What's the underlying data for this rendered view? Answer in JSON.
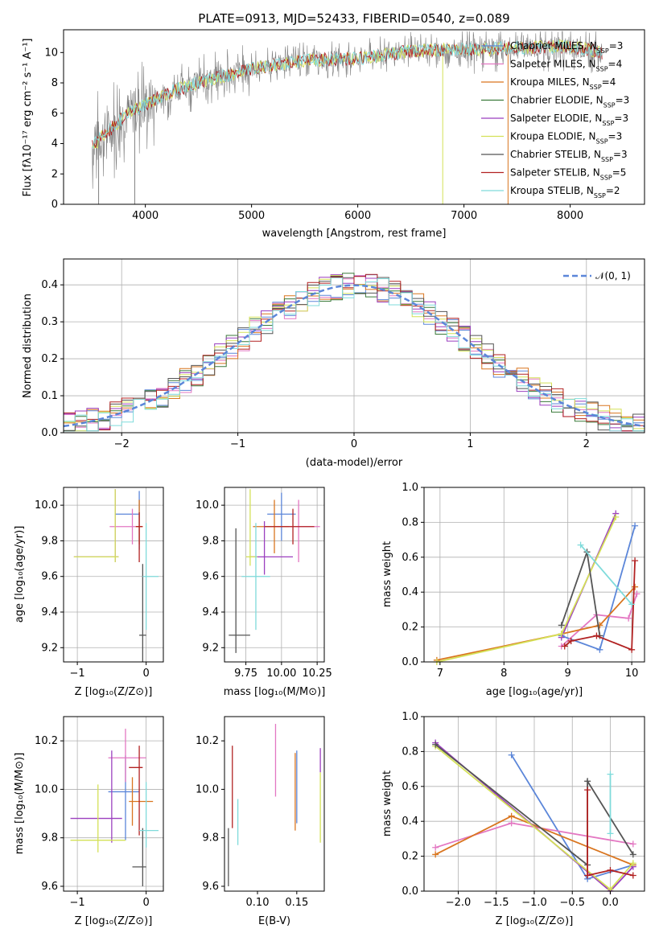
{
  "title": "PLATE=0913, MJD=52433, FIBERID=0540, z=0.089",
  "colors": {
    "Chabrier MILES": "#5b86d9",
    "Salpeter MILES": "#e377c2",
    "Kroupa MILES": "#d9751f",
    "Chabrier ELODIE": "#3a7a3a",
    "Salpeter ELODIE": "#9b3fbf",
    "Kroupa ELODIE": "#d4e157",
    "Chabrier STELIB": "#555555",
    "Salpeter STELIB": "#b22222",
    "Kroupa STELIB": "#7fdbdb"
  },
  "panels": {
    "spectrum": {
      "xlabel": "wavelength [Angstrom, rest frame]",
      "ylabel": "Flux [fλ10⁻¹⁷ erg cm⁻² s⁻¹ A⁻¹]",
      "xticks": [
        "4000",
        "5000",
        "6000",
        "7000",
        "8000"
      ],
      "yticks": [
        "0",
        "2",
        "4",
        "6",
        "8",
        "10"
      ],
      "legend": [
        {
          "name": "Chabrier MILES",
          "nssp": "3"
        },
        {
          "name": "Salpeter MILES",
          "nssp": "4"
        },
        {
          "name": "Kroupa MILES",
          "nssp": "4"
        },
        {
          "name": "Chabrier ELODIE",
          "nssp": "3"
        },
        {
          "name": "Salpeter ELODIE",
          "nssp": "3"
        },
        {
          "name": "Kroupa ELODIE",
          "nssp": "3"
        },
        {
          "name": "Chabrier STELIB",
          "nssp": "3"
        },
        {
          "name": "Salpeter STELIB",
          "nssp": "5"
        },
        {
          "name": "Kroupa STELIB",
          "nssp": "2"
        }
      ]
    },
    "residuals": {
      "xlabel": "(data-model)/error",
      "ylabel": "Normed distribution",
      "xticks": [
        "−2",
        "−1",
        "0",
        "1",
        "2"
      ],
      "yticks": [
        "0.0",
        "0.1",
        "0.2",
        "0.3",
        "0.4"
      ],
      "legend": "𝒩(0, 1)"
    },
    "age_vs_Z": {
      "xlabel": "Z [log₁₀(Z/Z⊙)]",
      "ylabel": "age  [log₁₀(age/yr)]",
      "xticks": [
        "−1",
        "0"
      ],
      "yticks": [
        "9.2",
        "9.4",
        "9.6",
        "9.8",
        "10.0"
      ]
    },
    "age_vs_mass": {
      "xlabel": "mass [log₁₀(M/M⊙)]",
      "xticks": [
        "9.75",
        "10.00",
        "10.25"
      ],
      "yticks": [
        "9.2",
        "9.4",
        "9.6",
        "9.8",
        "10.0"
      ]
    },
    "mw_vs_age": {
      "xlabel": "age  [log₁₀(age/yr)]",
      "ylabel": "mass weight",
      "xticks": [
        "7",
        "8",
        "9",
        "10"
      ],
      "yticks": [
        "0.0",
        "0.2",
        "0.4",
        "0.6",
        "0.8",
        "1.0"
      ]
    },
    "mass_vs_Z": {
      "xlabel": "Z [log₁₀(Z/Z⊙)]",
      "ylabel": "mass [log₁₀(M/M⊙)]",
      "xticks": [
        "−1",
        "0"
      ],
      "yticks": [
        "9.6",
        "9.8",
        "10.0",
        "10.2"
      ]
    },
    "mass_vs_ebv": {
      "xlabel": "E(B-V)",
      "xticks": [
        "0.10",
        "0.15"
      ],
      "yticks": [
        "9.6",
        "9.8",
        "10.0",
        "10.2"
      ]
    },
    "mw_vs_Z": {
      "xlabel": "Z [log₁₀(Z/Z⊙)]",
      "ylabel": "mass weight",
      "xticks": [
        "−2.0",
        "−1.5",
        "−1.0",
        "−0.5",
        "0.0"
      ],
      "yticks": [
        "0.0",
        "0.2",
        "0.4",
        "0.6",
        "0.8",
        "1.0"
      ]
    }
  },
  "chart_data": [
    {
      "type": "line",
      "title": "PLATE=0913, MJD=52433, FIBERID=0540, z=0.089",
      "xlabel": "wavelength [Angstrom, rest frame]",
      "ylabel": "Flux",
      "xlim": [
        3230,
        8700
      ],
      "ylim": [
        0,
        11.5
      ],
      "continuum": {
        "x": [
          3500,
          3800,
          4000,
          4300,
          4600,
          5000,
          5500,
          6000,
          6500,
          7000,
          7500,
          8000,
          8300
        ],
        "y": [
          3.8,
          5.8,
          6.6,
          7.6,
          8.2,
          8.9,
          9.5,
          9.6,
          10.1,
          10.2,
          10.3,
          10.4,
          10.0
        ]
      }
    },
    {
      "type": "line",
      "xlabel": "(data-model)/error",
      "ylabel": "Normed distribution",
      "xlim": [
        -2.5,
        2.5
      ],
      "ylim": [
        0,
        0.47
      ],
      "bin_width": 0.1,
      "series": [
        {
          "name": "𝒩(0, 1)",
          "style": "dashed",
          "mean": 0,
          "sigma": 1
        }
      ]
    },
    {
      "type": "scatter",
      "xlabel": "Z [log10(Z/Z⊙)]",
      "ylabel": "age  [log10(age/yr)]",
      "xlim": [
        -1.2,
        0.25
      ],
      "ylim": [
        9.12,
        10.1
      ],
      "points": [
        {
          "model": "Chabrier MILES",
          "x": -0.1,
          "xerr": [
            0.35,
            0
          ],
          "y": 9.95,
          "yerr": [
            0.2,
            0.13
          ]
        },
        {
          "model": "Salpeter MILES",
          "x": -0.2,
          "xerr": [
            0.33,
            0.05
          ],
          "y": 9.88,
          "yerr": [
            0.1,
            0.1
          ]
        },
        {
          "model": "Kroupa MILES",
          "x": -0.1,
          "xerr": [
            0.05,
            0.05
          ],
          "y": 9.88,
          "yerr": [
            0.1,
            0.15
          ]
        },
        {
          "model": "Salpeter ELODIE",
          "x": -0.45,
          "xerr": [
            0.6,
            0.05
          ],
          "y": 9.71,
          "yerr": [
            0.03,
            0.38
          ]
        },
        {
          "model": "Kroupa ELODIE",
          "x": -0.45,
          "xerr": [
            0.6,
            0.05
          ],
          "y": 9.71,
          "yerr": [
            0.03,
            0.38
          ]
        },
        {
          "model": "Chabrier STELIB",
          "x": -0.05,
          "xerr": [
            0.05,
            0.05
          ],
          "y": 9.27,
          "yerr": [
            0.15,
            0.4
          ]
        },
        {
          "model": "Salpeter STELIB",
          "x": -0.1,
          "xerr": [
            0.05,
            0.05
          ],
          "y": 9.88,
          "yerr": [
            0.2,
            0.08
          ]
        },
        {
          "model": "Kroupa STELIB",
          "x": 0.0,
          "xerr": [
            0.05,
            0.18
          ],
          "y": 9.6,
          "yerr": [
            0.3,
            0.3
          ]
        }
      ]
    },
    {
      "type": "scatter",
      "xlabel": "mass [log10(M/M⊙)]",
      "xlim": [
        9.6,
        10.3
      ],
      "ylim": [
        9.12,
        10.1
      ],
      "points": [
        {
          "model": "Chabrier MILES",
          "x": 10.0,
          "xerr": [
            0.1,
            0.1
          ],
          "y": 9.95,
          "yerr": [
            0.15,
            0.12
          ]
        },
        {
          "model": "Salpeter MILES",
          "x": 10.12,
          "xerr": [
            0.15,
            0.15
          ],
          "y": 9.88,
          "yerr": [
            0.2,
            0.15
          ]
        },
        {
          "model": "Kroupa MILES",
          "x": 9.95,
          "xerr": [
            0.15,
            0.1
          ],
          "y": 9.88,
          "yerr": [
            0.15,
            0.15
          ]
        },
        {
          "model": "Salpeter ELODIE",
          "x": 9.88,
          "xerr": [
            0.1,
            0.2
          ],
          "y": 9.71,
          "yerr": [
            0.1,
            0.2
          ]
        },
        {
          "model": "Kroupa ELODIE",
          "x": 9.78,
          "xerr": [
            0.03,
            0.05
          ],
          "y": 9.71,
          "yerr": [
            0.05,
            0.38
          ]
        },
        {
          "model": "Chabrier STELIB",
          "x": 9.68,
          "xerr": [
            0.05,
            0.1
          ],
          "y": 9.27,
          "yerr": [
            0.1,
            0.6
          ]
        },
        {
          "model": "Salpeter STELIB",
          "x": 10.08,
          "xerr": [
            0.2,
            0.15
          ],
          "y": 9.88,
          "yerr": [
            0.1,
            0.1
          ]
        },
        {
          "model": "Kroupa STELIB",
          "x": 9.82,
          "xerr": [
            0.1,
            0.1
          ],
          "y": 9.6,
          "yerr": [
            0.3,
            0.3
          ]
        }
      ]
    },
    {
      "type": "line",
      "xlabel": "age  [log10(age/yr)]",
      "ylabel": "mass weight",
      "xlim": [
        6.75,
        10.2
      ],
      "ylim": [
        0,
        1.0
      ],
      "series": [
        {
          "model": "Chabrier MILES",
          "x": [
            8.9,
            9.5,
            10.05
          ],
          "y": [
            0.15,
            0.07,
            0.78
          ]
        },
        {
          "model": "Salpeter MILES",
          "x": [
            8.9,
            9.45,
            9.95,
            10.08
          ],
          "y": [
            0.09,
            0.27,
            0.25,
            0.39
          ]
        },
        {
          "model": "Kroupa MILES",
          "x": [
            6.95,
            8.9,
            9.5,
            10.05
          ],
          "y": [
            0.01,
            0.16,
            0.21,
            0.43
          ]
        },
        {
          "model": "Salpeter ELODIE",
          "x": [
            8.9,
            9.75
          ],
          "y": [
            0.14,
            0.85
          ]
        },
        {
          "model": "Kroupa ELODIE",
          "x": [
            6.95,
            8.9,
            9.75
          ],
          "y": [
            0.0,
            0.16,
            0.83
          ]
        },
        {
          "model": "Chabrier STELIB",
          "x": [
            8.9,
            9.3,
            9.5
          ],
          "y": [
            0.21,
            0.63,
            0.15
          ]
        },
        {
          "model": "Salpeter STELIB",
          "x": [
            8.95,
            9.05,
            9.45,
            10.0,
            10.05
          ],
          "y": [
            0.09,
            0.12,
            0.15,
            0.07,
            0.58
          ]
        },
        {
          "model": "Kroupa STELIB",
          "x": [
            9.2,
            10.0
          ],
          "y": [
            0.67,
            0.33
          ]
        }
      ]
    },
    {
      "type": "scatter",
      "xlabel": "Z [log10(Z/Z⊙)]",
      "ylabel": "mass [log10(M/M⊙)]",
      "xlim": [
        -1.2,
        0.25
      ],
      "ylim": [
        9.58,
        10.3
      ],
      "points": [
        {
          "model": "Chabrier MILES",
          "x": -0.3,
          "xerr": [
            0.25,
            0.2
          ],
          "y": 9.99,
          "yerr": [
            0.2,
            0.15
          ]
        },
        {
          "model": "Salpeter MILES",
          "x": -0.3,
          "xerr": [
            0.25,
            0.3
          ],
          "y": 10.13,
          "yerr": [
            0.1,
            0.12
          ]
        },
        {
          "model": "Kroupa MILES",
          "x": -0.2,
          "xerr": [
            0.05,
            0.3
          ],
          "y": 9.95,
          "yerr": [
            0.1,
            0.1
          ]
        },
        {
          "model": "Salpeter ELODIE",
          "x": -0.5,
          "xerr": [
            0.6,
            0.15
          ],
          "y": 9.88,
          "yerr": [
            0.1,
            0.28
          ]
        },
        {
          "model": "Kroupa ELODIE",
          "x": -0.7,
          "xerr": [
            0.4,
            0.4
          ],
          "y": 9.79,
          "yerr": [
            0.05,
            0.23
          ]
        },
        {
          "model": "Chabrier STELIB",
          "x": -0.05,
          "xerr": [
            0.15,
            0.05
          ],
          "y": 9.68,
          "yerr": [
            0.08,
            0.16
          ]
        },
        {
          "model": "Salpeter STELIB",
          "x": -0.1,
          "xerr": [
            0.15,
            0.05
          ],
          "y": 10.09,
          "yerr": [
            0.28,
            0.09
          ]
        },
        {
          "model": "Kroupa STELIB",
          "x": 0.0,
          "xerr": [
            0.1,
            0.18
          ],
          "y": 9.83,
          "yerr": [
            0.07,
            0.2
          ]
        }
      ]
    },
    {
      "type": "scatter",
      "xlabel": "E(B-V)",
      "xlim": [
        0.058,
        0.185
      ],
      "ylim": [
        9.58,
        10.3
      ],
      "points": [
        {
          "model": "Chabrier STELIB",
          "x": 0.063,
          "y": 9.72,
          "yerr": [
            0.12,
            0.12
          ]
        },
        {
          "model": "Salpeter STELIB",
          "x": 0.068,
          "y": 9.98,
          "yerr": [
            0.14,
            0.2
          ]
        },
        {
          "model": "Kroupa STELIB",
          "x": 0.075,
          "y": 9.83,
          "yerr": [
            0.06,
            0.13
          ]
        },
        {
          "model": "Salpeter MILES",
          "x": 0.123,
          "y": 10.12,
          "yerr": [
            0.15,
            0.15
          ]
        },
        {
          "model": "Kroupa MILES",
          "x": 0.148,
          "y": 9.99,
          "yerr": [
            0.16,
            0.16
          ]
        },
        {
          "model": "Chabrier MILES",
          "x": 0.15,
          "y": 9.96,
          "yerr": [
            0.1,
            0.2
          ]
        },
        {
          "model": "Salpeter ELODIE",
          "x": 0.18,
          "y": 10.12,
          "yerr": [
            0.05,
            0.05
          ]
        },
        {
          "model": "Kroupa ELODIE",
          "x": 0.18,
          "y": 9.93,
          "yerr": [
            0.15,
            0.14
          ]
        }
      ]
    },
    {
      "type": "line",
      "xlabel": "Z [log10(Z/Z⊙)]",
      "ylabel": "mass weight",
      "xlim": [
        -2.45,
        0.45
      ],
      "ylim": [
        0,
        1.0
      ],
      "series": [
        {
          "model": "Chabrier MILES",
          "x": [
            -1.3,
            -0.3,
            0.3
          ],
          "y": [
            0.78,
            0.07,
            0.15
          ]
        },
        {
          "model": "Salpeter MILES",
          "x": [
            -2.3,
            -1.3,
            0.3
          ],
          "y": [
            0.25,
            0.39,
            0.27
          ]
        },
        {
          "model": "Kroupa MILES",
          "x": [
            -2.3,
            -1.3,
            0.3
          ],
          "y": [
            0.21,
            0.43,
            0.15
          ]
        },
        {
          "model": "Salpeter ELODIE",
          "x": [
            -2.3,
            0.0,
            0.3
          ],
          "y": [
            0.85,
            0.0,
            0.14
          ]
        },
        {
          "model": "Kroupa ELODIE",
          "x": [
            -2.3,
            0.0,
            0.3
          ],
          "y": [
            0.83,
            0.01,
            0.16
          ]
        },
        {
          "model": "Chabrier STELIB",
          "x": [
            -2.3,
            -0.3,
            -0.3,
            0.3
          ],
          "y": [
            0.84,
            0.15,
            0.63,
            0.21
          ]
        },
        {
          "model": "Salpeter STELIB",
          "x": [
            -0.3,
            -0.3,
            0.0,
            0.3
          ],
          "y": [
            0.58,
            0.09,
            0.12,
            0.09
          ]
        },
        {
          "model": "Kroupa STELIB",
          "x": [
            0.0,
            0.0
          ],
          "y": [
            0.33,
            0.67
          ]
        }
      ]
    }
  ]
}
